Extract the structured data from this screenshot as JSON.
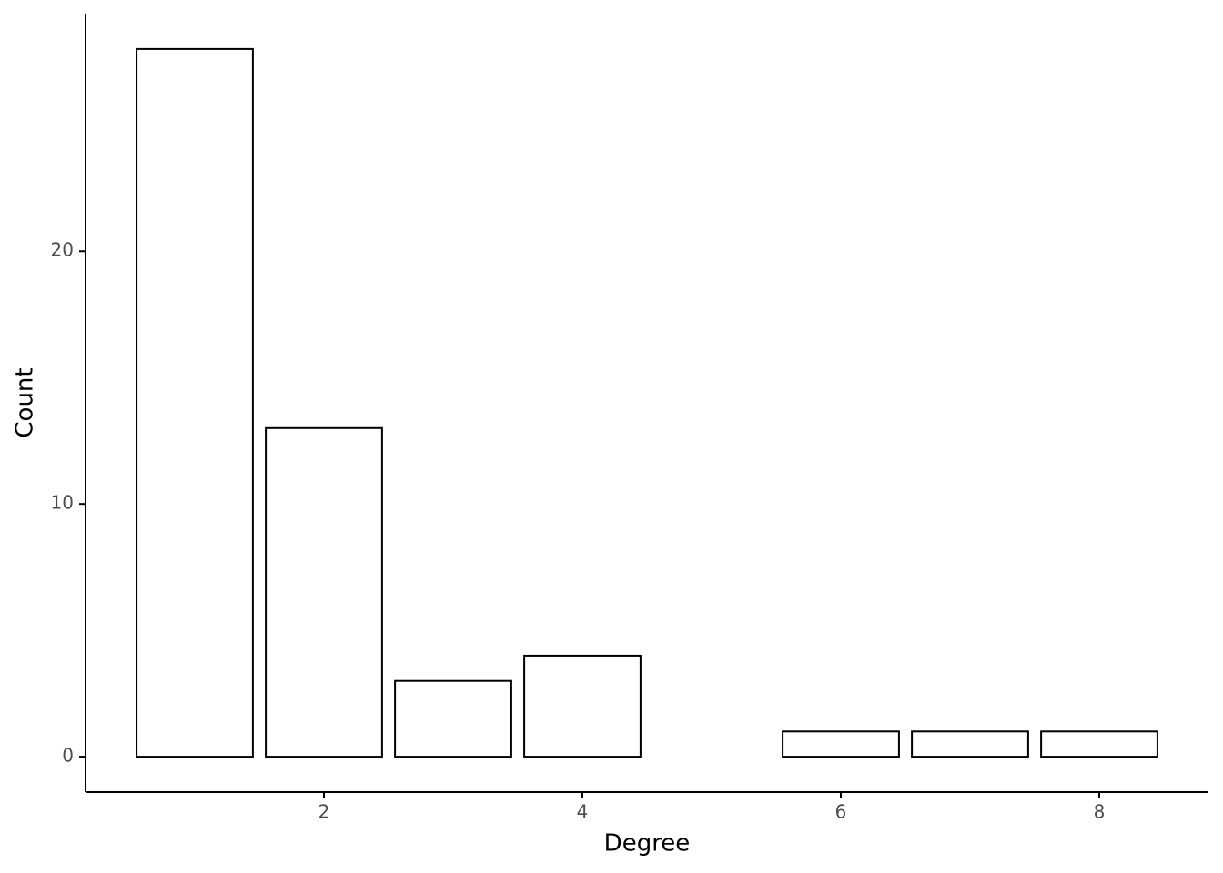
{
  "chart_data": {
    "type": "bar",
    "x_label": "Degree",
    "y_label": "Count",
    "x": [
      1,
      2,
      3,
      4,
      6,
      7,
      8
    ],
    "values": [
      28,
      13,
      3,
      4,
      1,
      1,
      1
    ],
    "color": "#ffffff",
    "edgecolor": "#000000",
    "xlim": [
      0.155,
      8.845
    ],
    "xticks": [
      2,
      4,
      6,
      8
    ],
    "ylim": [
      -1.4,
      29.4
    ],
    "yticks": [
      0,
      10,
      20
    ],
    "grid": false
  }
}
